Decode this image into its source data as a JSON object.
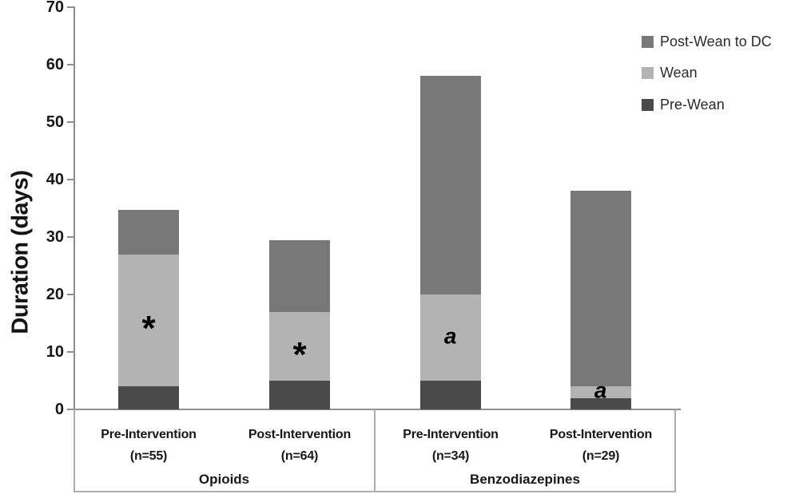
{
  "chart_data": {
    "type": "bar",
    "subtype": "stacked-vertical",
    "title": "",
    "ylabel": "Duration (days)",
    "xlabel": "",
    "ylim": [
      0,
      70
    ],
    "yticks": [
      0,
      10,
      20,
      30,
      40,
      50,
      60,
      70
    ],
    "grid": false,
    "legend_position": "top-right",
    "groups": [
      {
        "label": "Opioids",
        "bar_indexes": [
          0,
          1
        ]
      },
      {
        "label": "Benzodiazepines",
        "bar_indexes": [
          2,
          3
        ]
      }
    ],
    "categories": [
      {
        "line1": "Pre-Intervention",
        "line2": "(n=55)"
      },
      {
        "line1": "Post-Intervention",
        "line2": "(n=64)"
      },
      {
        "line1": "Pre-Intervention",
        "line2": "(n=34)"
      },
      {
        "line1": "Post-Intervention",
        "line2": "(n=29)"
      }
    ],
    "series": [
      {
        "name": "Pre-Wean",
        "color": "#4a4a4a",
        "values": [
          4,
          5,
          5,
          2
        ]
      },
      {
        "name": "Wean",
        "color": "#b3b3b3",
        "values": [
          23,
          12,
          15,
          2
        ]
      },
      {
        "name": "Post-Wean to DC",
        "color": "#787878",
        "values": [
          7.7,
          12.4,
          38,
          34
        ]
      }
    ],
    "totals": [
      34.7,
      29.4,
      58,
      38
    ],
    "annotations": [
      {
        "bar_index": 0,
        "segment": "Wean",
        "text": "*",
        "style": "asterisk"
      },
      {
        "bar_index": 1,
        "segment": "Wean",
        "text": "*",
        "style": "asterisk"
      },
      {
        "bar_index": 2,
        "segment": "Wean",
        "text": "a",
        "style": "letter"
      },
      {
        "bar_index": 3,
        "segment": "Wean",
        "text": "a",
        "style": "letter"
      }
    ]
  },
  "legend": {
    "items": [
      {
        "label": "Post-Wean to DC",
        "color": "#787878"
      },
      {
        "label": "Wean",
        "color": "#b3b3b3"
      },
      {
        "label": "Pre-Wean",
        "color": "#4a4a4a"
      }
    ]
  },
  "colors": {
    "axis": "#8f8f8f",
    "frame": "#adadad",
    "text": "#171717"
  }
}
